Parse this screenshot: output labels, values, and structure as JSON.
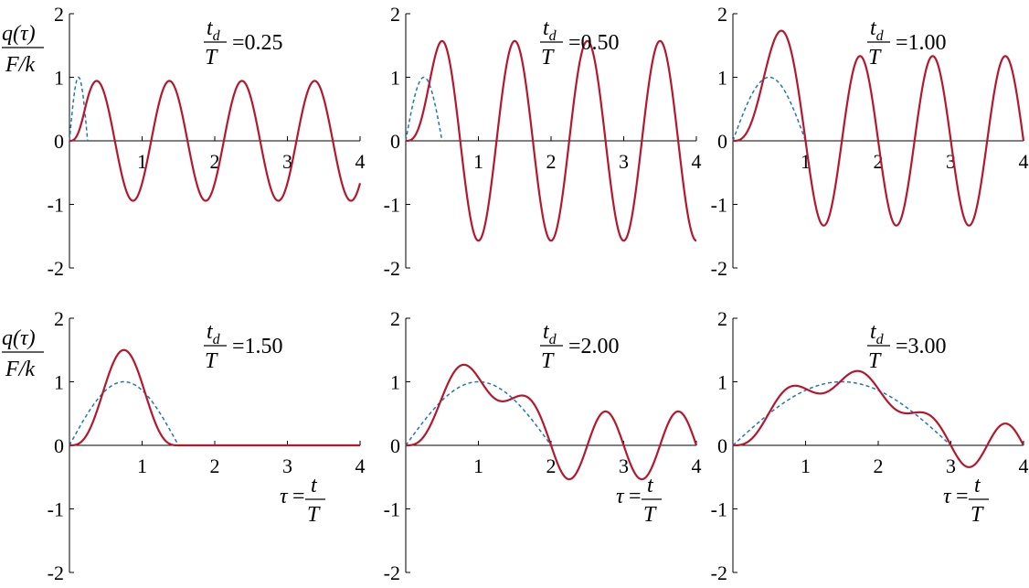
{
  "chart_data": [
    {
      "type": "line",
      "td_over_T": 0.25,
      "ratio_label": "=0.25",
      "ylabel": "q(τ) / F/k",
      "xlabel": "",
      "xlim": [
        0,
        4
      ],
      "ylim": [
        -2,
        2
      ],
      "xticks": [
        "1",
        "2",
        "3",
        "4"
      ],
      "yticks": [
        "2",
        "1",
        "0",
        "-1",
        "-2"
      ],
      "series": [
        {
          "style": "solid",
          "color": "#b5172d"
        },
        {
          "style": "dashed",
          "color": "#1f77b4"
        }
      ]
    },
    {
      "type": "line",
      "td_over_T": 0.5,
      "ratio_label": "=0.50",
      "xlim": [
        0,
        4
      ],
      "ylim": [
        -2,
        2
      ],
      "xticks": [
        "1",
        "2",
        "3",
        "4"
      ],
      "yticks": [
        "2",
        "1",
        "0",
        "-1",
        "-2"
      ],
      "series": [
        {
          "style": "solid",
          "color": "#b5172d"
        },
        {
          "style": "dashed",
          "color": "#1f77b4"
        }
      ]
    },
    {
      "type": "line",
      "td_over_T": 1.0,
      "ratio_label": "=1.00",
      "xlim": [
        0,
        4
      ],
      "ylim": [
        -2,
        2
      ],
      "xticks": [
        "1",
        "2",
        "3",
        "4"
      ],
      "yticks": [
        "2",
        "1",
        "0",
        "-1",
        "-2"
      ],
      "series": [
        {
          "style": "solid",
          "color": "#b5172d"
        },
        {
          "style": "dashed",
          "color": "#1f77b4"
        }
      ]
    },
    {
      "type": "line",
      "td_over_T": 1.5,
      "ratio_label": "=1.50",
      "ylabel": "q(τ) / F/k",
      "xlabel": "τ = t/T",
      "xlim": [
        0,
        4
      ],
      "ylim": [
        -2,
        2
      ],
      "xticks": [
        "1",
        "2",
        "3",
        "4"
      ],
      "yticks": [
        "2",
        "1",
        "0",
        "-1",
        "-2"
      ],
      "series": [
        {
          "style": "solid",
          "color": "#b5172d"
        },
        {
          "style": "dashed",
          "color": "#1f77b4"
        }
      ]
    },
    {
      "type": "line",
      "td_over_T": 2.0,
      "ratio_label": "=2.00",
      "xlabel": "τ = t/T",
      "xlim": [
        0,
        4
      ],
      "ylim": [
        -2,
        2
      ],
      "xticks": [
        "1",
        "2",
        "3",
        "4"
      ],
      "yticks": [
        "2",
        "1",
        "0",
        "-1",
        "-2"
      ],
      "series": [
        {
          "style": "solid",
          "color": "#b5172d"
        },
        {
          "style": "dashed",
          "color": "#1f77b4"
        }
      ]
    },
    {
      "type": "line",
      "td_over_T": 3.0,
      "ratio_label": "=3.00",
      "xlabel": "τ = t/T",
      "xlim": [
        0,
        4
      ],
      "ylim": [
        -2,
        2
      ],
      "xticks": [
        "1",
        "2",
        "3",
        "4"
      ],
      "yticks": [
        "2",
        "1",
        "0",
        "-1",
        "-2"
      ],
      "series": [
        {
          "style": "solid",
          "color": "#b5172d"
        },
        {
          "style": "dashed",
          "color": "#1f77b4"
        }
      ]
    }
  ]
}
